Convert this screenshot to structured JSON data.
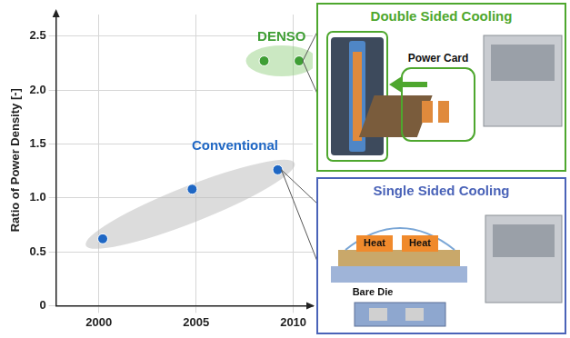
{
  "chart_data": {
    "type": "scatter",
    "y_label": "Ratio of Power Density [-]",
    "xlim": [
      1997.8,
      2011
    ],
    "xticks": [
      2000,
      2005,
      2010
    ],
    "ylim": [
      0,
      2.7
    ],
    "yticks": [
      0,
      0.5,
      {
        "value": 1,
        "label": "1.0"
      },
      1.5,
      {
        "value": 2,
        "label": "2.0"
      },
      2.5
    ],
    "grid": true,
    "series": [
      {
        "name": "DENSO",
        "color": "#3f9e35",
        "x": [
          2008.5,
          2010.3
        ],
        "values": [
          2.27,
          2.27
        ]
      },
      {
        "name": "Conventional",
        "color": "#1f67c4",
        "x": [
          2000.2,
          2004.8,
          2009.2
        ],
        "values": [
          0.62,
          1.08,
          1.26
        ]
      }
    ]
  },
  "panels": [
    {
      "title": "Double Sided Cooling",
      "color": "#4ea72e",
      "labels": [
        "Power Card"
      ]
    },
    {
      "title": "Single Sided Cooling",
      "color": "#4a63b8",
      "labels": [
        "Heat",
        "Heat",
        "Bare Die"
      ]
    }
  ]
}
